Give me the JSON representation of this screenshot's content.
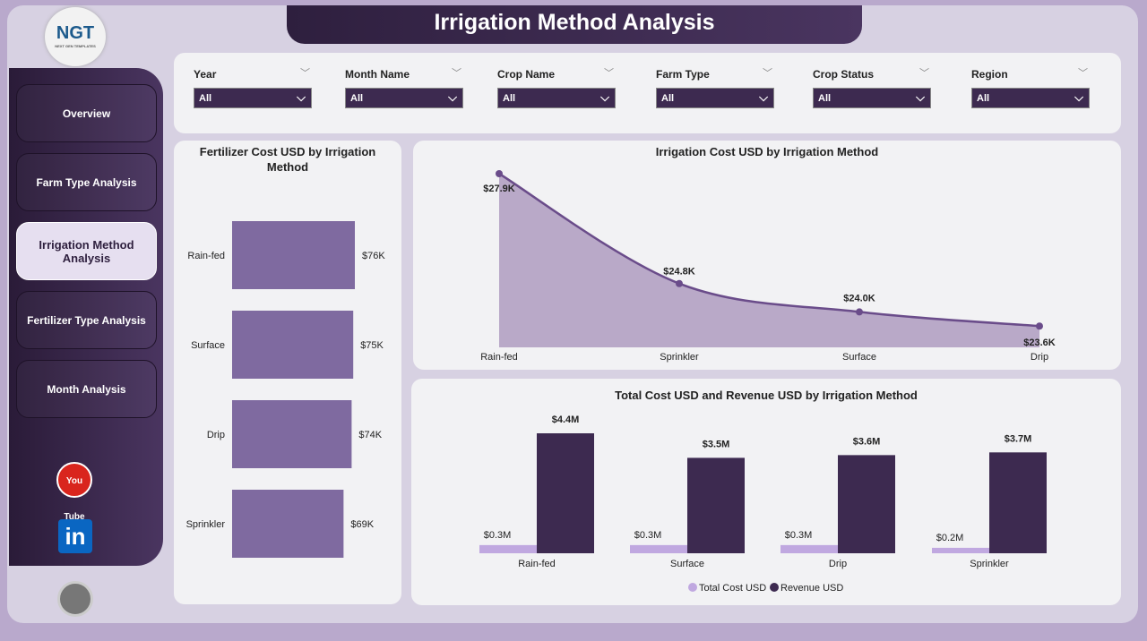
{
  "header": {
    "title": "Irrigation Method Analysis",
    "logo_text": "NGT",
    "logo_sub": "NEXT GEN TEMPLATES"
  },
  "sidebar": {
    "items": [
      {
        "label": "Overview"
      },
      {
        "label": "Farm Type Analysis"
      },
      {
        "label": "Irrigation Method Analysis",
        "active": true
      },
      {
        "label": "Fertilizer Type Analysis"
      },
      {
        "label": "Month Analysis"
      }
    ],
    "social": [
      "youtube-icon",
      "linkedin-icon",
      "globe-icon"
    ],
    "youtube_text": "You Tube",
    "linkedin_text": "in"
  },
  "filters": [
    {
      "label": "Year",
      "value": "All"
    },
    {
      "label": "Month Name",
      "value": "All"
    },
    {
      "label": "Crop Name",
      "value": "All"
    },
    {
      "label": "Farm Type",
      "value": "All"
    },
    {
      "label": "Crop Status",
      "value": "All"
    },
    {
      "label": "Region",
      "value": "All"
    }
  ],
  "colors": {
    "dark": "#3d2a50",
    "bar": "#7f6aa0",
    "area": "#b9a9c8",
    "line": "#6a4c8a",
    "cost": "#c0a8e0"
  },
  "chart_data": [
    {
      "type": "bar",
      "orientation": "horizontal",
      "title": "Fertilizer Cost USD by Irrigation Method",
      "categories": [
        "Rain-fed",
        "Surface",
        "Drip",
        "Sprinkler"
      ],
      "values": [
        76,
        75,
        74,
        69
      ],
      "labels": [
        "$76K",
        "$75K",
        "$74K",
        "$69K"
      ],
      "unit": "K USD",
      "xlim": [
        0,
        80
      ]
    },
    {
      "type": "area",
      "title": "Irrigation Cost USD by Irrigation Method",
      "categories": [
        "Rain-fed",
        "Sprinkler",
        "Surface",
        "Drip"
      ],
      "values": [
        27.9,
        24.8,
        24.0,
        23.6
      ],
      "labels": [
        "$27.9K",
        "$24.8K",
        "$24.0K",
        "$23.6K"
      ],
      "unit": "K USD",
      "ylim": [
        23.0,
        27.9
      ]
    },
    {
      "type": "bar",
      "title": "Total Cost USD and Revenue USD by Irrigation Method",
      "categories": [
        "Rain-fed",
        "Surface",
        "Drip",
        "Sprinkler"
      ],
      "series": [
        {
          "name": "Total Cost USD",
          "values": [
            0.3,
            0.3,
            0.3,
            0.2
          ],
          "labels": [
            "$0.3M",
            "$0.3M",
            "$0.3M",
            "$0.2M"
          ]
        },
        {
          "name": "Revenue USD",
          "values": [
            4.4,
            3.5,
            3.6,
            3.7
          ],
          "labels": [
            "$4.4M",
            "$3.5M",
            "$3.6M",
            "$3.7M"
          ]
        }
      ],
      "unit": "M USD",
      "ylim": [
        0,
        4.4
      ],
      "legend": "bottom"
    }
  ]
}
